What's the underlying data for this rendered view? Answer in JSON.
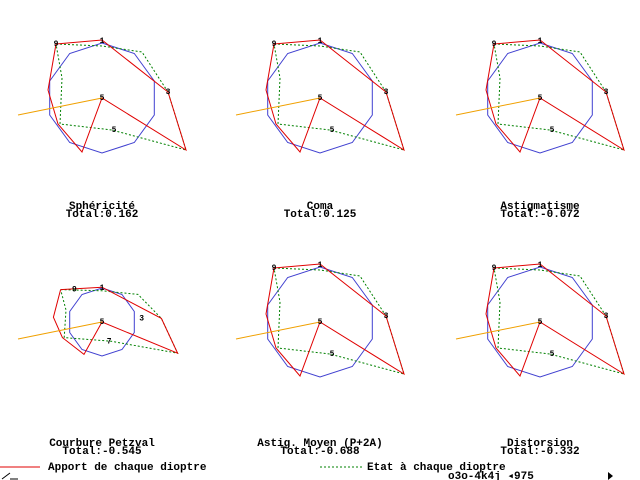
{
  "panels": [
    {
      "title": "Sphéricité",
      "total": "Total:0.162",
      "point_labels": [
        "1",
        "9",
        "3",
        "5",
        "5"
      ]
    },
    {
      "title": "Coma",
      "total": "Total:0.125",
      "point_labels": [
        "1",
        "9",
        "3",
        "5",
        "5"
      ]
    },
    {
      "title": "Astigmatisme",
      "total": "Total:-0.072",
      "point_labels": [
        "1",
        "9",
        "3",
        "5",
        "5"
      ]
    },
    {
      "title": "Courbure Petzval",
      "total": "Total:-0.545",
      "point_labels": [
        "1",
        "9",
        "3",
        "5",
        "7"
      ]
    },
    {
      "title": "Astig. Moyen (P+2A)",
      "total": "Total:-0.688",
      "point_labels": [
        "1",
        "9",
        "3",
        "5",
        "5"
      ]
    },
    {
      "title": "Distorsion",
      "total": "Total:-0.332",
      "point_labels": [
        "1",
        "9",
        "3",
        "5",
        "5"
      ]
    }
  ],
  "legend": {
    "red": "Apport de chaque dioptre",
    "green": "Etat à chaque dioptre"
  },
  "footer": "o3o-4k4j ◂975"
}
